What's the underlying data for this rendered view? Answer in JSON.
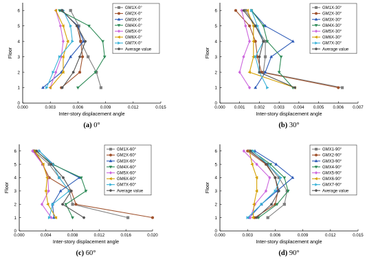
{
  "chart_data": [
    {
      "type": "line",
      "caption_label": "(a)",
      "caption_text": "0°",
      "xlabel": "Inter-story displacement angle",
      "ylabel": "Floor",
      "xlim": [
        0,
        0.015
      ],
      "ylim": [
        0,
        6.5
      ],
      "xticks": [
        "0.000",
        "0.003",
        "0.006",
        "0.009",
        "0.012",
        "0.015"
      ],
      "yticks": [
        "0",
        "1",
        "2",
        "3",
        "4",
        "5",
        "6"
      ],
      "legend_position": "top-right",
      "y": [
        1,
        2,
        3,
        4,
        5,
        6
      ],
      "series": [
        {
          "name": "GM1X-0°",
          "color": "#7f7f7f",
          "marker": "square",
          "values": [
            0.0085,
            0.008,
            0.0071,
            0.0063,
            0.0061,
            0.0052
          ]
        },
        {
          "name": "GM2X-0°",
          "color": "#a0522d",
          "marker": "circle",
          "values": [
            0.0042,
            0.0062,
            0.0065,
            0.0063,
            0.0059,
            0.0043
          ]
        },
        {
          "name": "GM3X-0°",
          "color": "#2e5cb8",
          "marker": "triangle-up",
          "values": [
            0.0022,
            0.0042,
            0.0052,
            0.0066,
            0.006,
            0.0042
          ]
        },
        {
          "name": "GM4X-0°",
          "color": "#2e8b57",
          "marker": "triangle-down",
          "values": [
            0.006,
            0.0079,
            0.0089,
            0.0087,
            0.0072,
            0.004
          ]
        },
        {
          "name": "GM5X-0°",
          "color": "#cc66dd",
          "marker": "diamond",
          "values": [
            0.003,
            0.0036,
            0.0042,
            0.0044,
            0.0041,
            0.0036
          ]
        },
        {
          "name": "GM6X-0°",
          "color": "#d4a000",
          "marker": "triangle-left",
          "values": [
            0.003,
            0.0044,
            0.0044,
            0.0049,
            0.0044,
            0.0036
          ]
        },
        {
          "name": "GM7X-0°",
          "color": "#3bb3d8",
          "marker": "triangle-right",
          "values": [
            0.0026,
            0.0033,
            0.004,
            0.0054,
            0.0052,
            0.0044
          ]
        },
        {
          "name": "Average value",
          "color": "#555555",
          "marker": "hexagon",
          "values": [
            0.0043,
            0.0055,
            0.0062,
            0.0068,
            0.0059,
            0.0043
          ]
        }
      ]
    },
    {
      "type": "line",
      "caption_label": "(b)",
      "caption_text": "30°",
      "xlabel": "Inter-story displacement angle",
      "ylabel": "Floor",
      "xlim": [
        0,
        0.007
      ],
      "ylim": [
        0,
        6.5
      ],
      "xticks": [
        "0.000",
        "0.001",
        "0.002",
        "0.003",
        "0.004",
        "0.005",
        "0.006",
        "0.007"
      ],
      "yticks": [
        "0",
        "1",
        "2",
        "3",
        "4",
        "5",
        "6"
      ],
      "legend_position": "top-right",
      "y": [
        1,
        2,
        3,
        4,
        5,
        6
      ],
      "series": [
        {
          "name": "GM1X-30°",
          "color": "#7f7f7f",
          "marker": "square",
          "values": [
            0.0062,
            0.0022,
            0.0023,
            0.0023,
            0.0018,
            0.0013
          ]
        },
        {
          "name": "GM2X-30°",
          "color": "#a0522d",
          "marker": "circle",
          "values": [
            0.006,
            0.0021,
            0.0019,
            0.0018,
            0.0015,
            0.0008
          ]
        },
        {
          "name": "GM3X-30°",
          "color": "#2e5cb8",
          "marker": "triangle-up",
          "values": [
            0.0018,
            0.0023,
            0.0026,
            0.0037,
            0.0023,
            0.0016
          ]
        },
        {
          "name": "GM4X-30°",
          "color": "#2e8b57",
          "marker": "triangle-down",
          "values": [
            0.0037,
            0.003,
            0.0031,
            0.0024,
            0.0022,
            0.0016
          ]
        },
        {
          "name": "GM5X-30°",
          "color": "#cc66dd",
          "marker": "diamond",
          "values": [
            0.0015,
            0.001,
            0.0012,
            0.0015,
            0.0013,
            0.0011
          ]
        },
        {
          "name": "GM6X-30°",
          "color": "#d4a000",
          "marker": "triangle-left",
          "values": [
            0.0038,
            0.0015,
            0.0017,
            0.0017,
            0.0017,
            0.0014
          ]
        },
        {
          "name": "GM7X-30°",
          "color": "#3bb3d8",
          "marker": "triangle-right",
          "values": [
            0.0024,
            0.002,
            0.0018,
            0.0022,
            0.0019,
            0.0016
          ]
        },
        {
          "name": "Average value",
          "color": "#555555",
          "marker": "hexagon",
          "values": [
            0.0038,
            0.002,
            0.002,
            0.0022,
            0.0018,
            0.0012
          ]
        }
      ]
    },
    {
      "type": "line",
      "caption_label": "(c)",
      "caption_text": "60°",
      "xlabel": "Inter-story displacement angle",
      "ylabel": "Floor",
      "xlim": [
        0,
        0.02
      ],
      "ylim": [
        0,
        6.5
      ],
      "xticks": [
        "0.000",
        "0.004",
        "0.008",
        "0.012",
        "0.016",
        "0.020"
      ],
      "yticks": [
        "0",
        "1",
        "2",
        "3",
        "4",
        "5",
        "6"
      ],
      "legend_position": "top-right",
      "y": [
        1,
        2,
        3,
        4,
        5,
        6
      ],
      "series": [
        {
          "name": "GM1X-60°",
          "color": "#7f7f7f",
          "marker": "square",
          "values": [
            0.0163,
            0.008,
            0.0075,
            0.006,
            0.0045,
            0.0022
          ]
        },
        {
          "name": "GM2X-60°",
          "color": "#a0522d",
          "marker": "circle",
          "values": [
            0.02,
            0.0085,
            0.0078,
            0.0045,
            0.0035,
            0.0022
          ]
        },
        {
          "name": "GM3X-60°",
          "color": "#2e5cb8",
          "marker": "triangle-up",
          "values": [
            0.0052,
            0.005,
            0.0062,
            0.009,
            0.0051,
            0.003
          ]
        },
        {
          "name": "GM4X-60°",
          "color": "#2e8b57",
          "marker": "triangle-down",
          "values": [
            0.008,
            0.007,
            0.01,
            0.0093,
            0.005,
            0.0025
          ]
        },
        {
          "name": "GM5X-60°",
          "color": "#cc66dd",
          "marker": "diamond",
          "values": [
            0.0048,
            0.0034,
            0.0044,
            0.0043,
            0.0035,
            0.002
          ]
        },
        {
          "name": "GM6X-60°",
          "color": "#d4a000",
          "marker": "triangle-left",
          "values": [
            0.0055,
            0.0043,
            0.004,
            0.0042,
            0.0036,
            0.0024
          ]
        },
        {
          "name": "GM7X-60°",
          "color": "#3bb3d8",
          "marker": "triangle-right",
          "values": [
            0.0045,
            0.005,
            0.0075,
            0.006,
            0.005,
            0.003
          ]
        },
        {
          "name": "Average value",
          "color": "#555555",
          "marker": "hexagon",
          "values": [
            0.0097,
            0.0065,
            0.0078,
            0.0066,
            0.0048,
            0.0026
          ]
        }
      ]
    },
    {
      "type": "line",
      "caption_label": "(d)",
      "caption_text": "90°",
      "xlabel": "Inter-story displacement angle",
      "ylabel": "Floor",
      "xlim": [
        0,
        0.015
      ],
      "ylim": [
        0,
        6.5
      ],
      "xticks": [
        "0.000",
        "0.003",
        "0.006",
        "0.009",
        "0.012",
        "0.015"
      ],
      "yticks": [
        "0",
        "1",
        "2",
        "3",
        "4",
        "5",
        "6"
      ],
      "legend_position": "top-right",
      "y": [
        1,
        2,
        3,
        4,
        5,
        6
      ],
      "series": [
        {
          "name": "GMX1-90°",
          "color": "#7f7f7f",
          "marker": "square",
          "values": [
            0.0052,
            0.007,
            0.0073,
            0.0064,
            0.0052,
            0.0032
          ]
        },
        {
          "name": "GMX2-90°",
          "color": "#a0522d",
          "marker": "circle",
          "values": [
            0.0038,
            0.006,
            0.0063,
            0.006,
            0.005,
            0.003
          ]
        },
        {
          "name": "GMX3-90°",
          "color": "#2e5cb8",
          "marker": "triangle-up",
          "values": [
            0.0032,
            0.0045,
            0.0062,
            0.0079,
            0.0061,
            0.0038
          ]
        },
        {
          "name": "GMX4-90°",
          "color": "#2e8b57",
          "marker": "triangle-down",
          "values": [
            0.0042,
            0.0062,
            0.0074,
            0.007,
            0.0055,
            0.0035
          ]
        },
        {
          "name": "GMX5-90°",
          "color": "#cc66dd",
          "marker": "diamond",
          "values": [
            0.0033,
            0.0038,
            0.005,
            0.0054,
            0.004,
            0.0026
          ]
        },
        {
          "name": "GMX6-90°",
          "color": "#d4a000",
          "marker": "triangle-left",
          "values": [
            0.0036,
            0.0037,
            0.004,
            0.004,
            0.0035,
            0.0032
          ]
        },
        {
          "name": "GMX7-90°",
          "color": "#3bb3d8",
          "marker": "triangle-right",
          "values": [
            0.003,
            0.0045,
            0.006,
            0.0066,
            0.0052,
            0.0036
          ]
        },
        {
          "name": "Average value",
          "color": "#555555",
          "marker": "hexagon",
          "values": [
            0.004,
            0.0056,
            0.0064,
            0.006,
            0.0051,
            0.0033
          ]
        }
      ]
    }
  ]
}
